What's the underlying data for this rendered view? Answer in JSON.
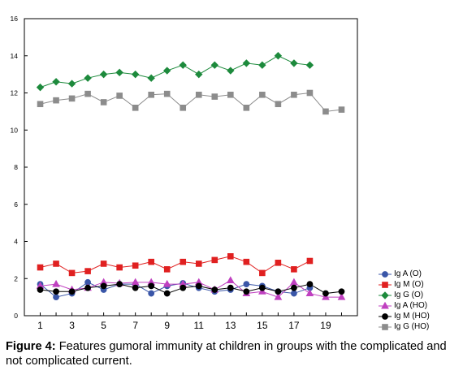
{
  "caption": {
    "label": "Figure 4:",
    "text": "Features gumoral immunity at children in groups with the complicated and not complicated current."
  },
  "chart_data": {
    "type": "line",
    "title": "",
    "xlabel": "",
    "ylabel": "",
    "xlim": [
      0,
      21
    ],
    "ylim": [
      0,
      16
    ],
    "x_ticks": [
      1,
      3,
      5,
      7,
      9,
      11,
      13,
      15,
      17,
      19
    ],
    "y_ticks": [
      0,
      2,
      4,
      6,
      8,
      10,
      12,
      14,
      16
    ],
    "grid": false,
    "legend_position": "bottom-right",
    "series": [
      {
        "name": "Ig A (O)",
        "color": "#3a56a8",
        "marker": "circle",
        "x": [
          1,
          2,
          3,
          4,
          5,
          6,
          7,
          8,
          9,
          10,
          11,
          12,
          13,
          14,
          15,
          16,
          17,
          18
        ],
        "values": [
          1.7,
          1.0,
          1.2,
          1.8,
          1.4,
          1.7,
          1.7,
          1.2,
          1.6,
          1.75,
          1.5,
          1.3,
          1.4,
          1.7,
          1.6,
          1.3,
          1.2,
          1.5
        ]
      },
      {
        "name": "Ig M (O)",
        "color": "#e02020",
        "marker": "square",
        "x": [
          1,
          2,
          3,
          4,
          5,
          6,
          7,
          8,
          9,
          10,
          11,
          12,
          13,
          14,
          15,
          16,
          17,
          18
        ],
        "values": [
          2.6,
          2.8,
          2.3,
          2.4,
          2.8,
          2.6,
          2.7,
          2.9,
          2.5,
          2.9,
          2.8,
          3.0,
          3.2,
          2.9,
          2.3,
          2.85,
          2.5,
          2.95
        ]
      },
      {
        "name": "Ig G (O)",
        "color": "#1d8a3c",
        "marker": "diamond",
        "x": [
          1,
          2,
          3,
          4,
          5,
          6,
          7,
          8,
          9,
          10,
          11,
          12,
          13,
          14,
          15,
          16,
          17,
          18
        ],
        "values": [
          12.3,
          12.6,
          12.5,
          12.8,
          13.0,
          13.1,
          13.0,
          12.8,
          13.2,
          13.5,
          13.0,
          13.5,
          13.2,
          13.6,
          13.5,
          14.0,
          13.6,
          13.5
        ]
      },
      {
        "name": "Ig A (HO)",
        "color": "#c040c0",
        "marker": "triangle",
        "x": [
          1,
          2,
          3,
          4,
          5,
          6,
          7,
          8,
          9,
          10,
          11,
          12,
          13,
          14,
          15,
          16,
          17,
          18,
          19,
          20
        ],
        "values": [
          1.6,
          1.7,
          1.4,
          1.5,
          1.8,
          1.75,
          1.8,
          1.8,
          1.7,
          1.7,
          1.8,
          1.4,
          1.9,
          1.2,
          1.3,
          1.0,
          1.8,
          1.2,
          1.0,
          1.0
        ]
      },
      {
        "name": "Ig M (HO)",
        "color": "#000000",
        "marker": "circle",
        "x": [
          1,
          2,
          3,
          4,
          5,
          6,
          7,
          8,
          9,
          10,
          11,
          12,
          13,
          14,
          15,
          16,
          17,
          18,
          19,
          20
        ],
        "values": [
          1.4,
          1.3,
          1.3,
          1.5,
          1.6,
          1.7,
          1.5,
          1.6,
          1.2,
          1.5,
          1.6,
          1.4,
          1.5,
          1.3,
          1.5,
          1.3,
          1.5,
          1.7,
          1.2,
          1.3
        ]
      },
      {
        "name": "Ig G (HO)",
        "color": "#8c8c8c",
        "marker": "square",
        "x": [
          1,
          2,
          3,
          4,
          5,
          6,
          7,
          8,
          9,
          10,
          11,
          12,
          13,
          14,
          15,
          16,
          17,
          18,
          19,
          20
        ],
        "values": [
          11.4,
          11.6,
          11.7,
          11.95,
          11.5,
          11.85,
          11.2,
          11.9,
          11.95,
          11.2,
          11.9,
          11.8,
          11.9,
          11.2,
          11.9,
          11.4,
          11.9,
          12.0,
          11.0,
          11.1
        ]
      }
    ]
  }
}
